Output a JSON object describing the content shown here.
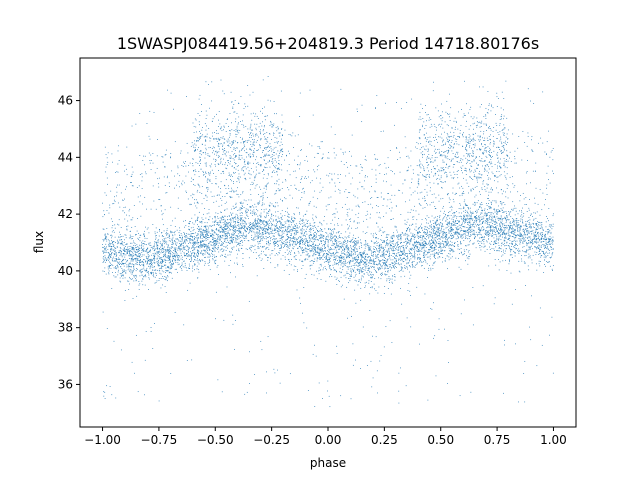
{
  "chart_data": {
    "type": "scatter",
    "title": "1SWASPJ084419.56+204819.3 Period 14718.80176s",
    "xlabel": "phase",
    "ylabel": "flux",
    "xlim": [
      -1.1,
      1.1
    ],
    "ylim": [
      34.5,
      47.5
    ],
    "xticks": [
      "−1.00",
      "−0.75",
      "−0.50",
      "−0.25",
      "0.00",
      "0.25",
      "0.50",
      "0.75",
      "1.00"
    ],
    "xtick_values": [
      -1.0,
      -0.75,
      -0.5,
      -0.25,
      0.0,
      0.25,
      0.5,
      0.75,
      1.0
    ],
    "yticks": [
      "36",
      "38",
      "40",
      "42",
      "44",
      "46"
    ],
    "ytick_values": [
      36,
      38,
      40,
      42,
      44,
      46
    ],
    "grid": false,
    "legend": "none",
    "marker_color": "#1f77b4",
    "series": [
      {
        "main_band": {
          "description_x": [
            -1.0,
            -0.85,
            -0.75,
            -0.5,
            -0.35,
            -0.25,
            0.0,
            0.15,
            0.25,
            0.5,
            0.65,
            0.75,
            1.0
          ],
          "y_center": [
            40.7,
            40.4,
            40.5,
            41.2,
            41.6,
            41.5,
            40.8,
            40.4,
            40.5,
            41.2,
            41.6,
            41.5,
            41.0
          ],
          "spread": 0.45
        },
        "secondary_cluster": {
          "x_ranges": [
            [
              -0.6,
              -0.2
            ],
            [
              0.4,
              0.8
            ]
          ],
          "y_center": 44.2,
          "spread": 0.9
        },
        "outlier_range": [
          35.2,
          46.5
        ]
      }
    ]
  }
}
